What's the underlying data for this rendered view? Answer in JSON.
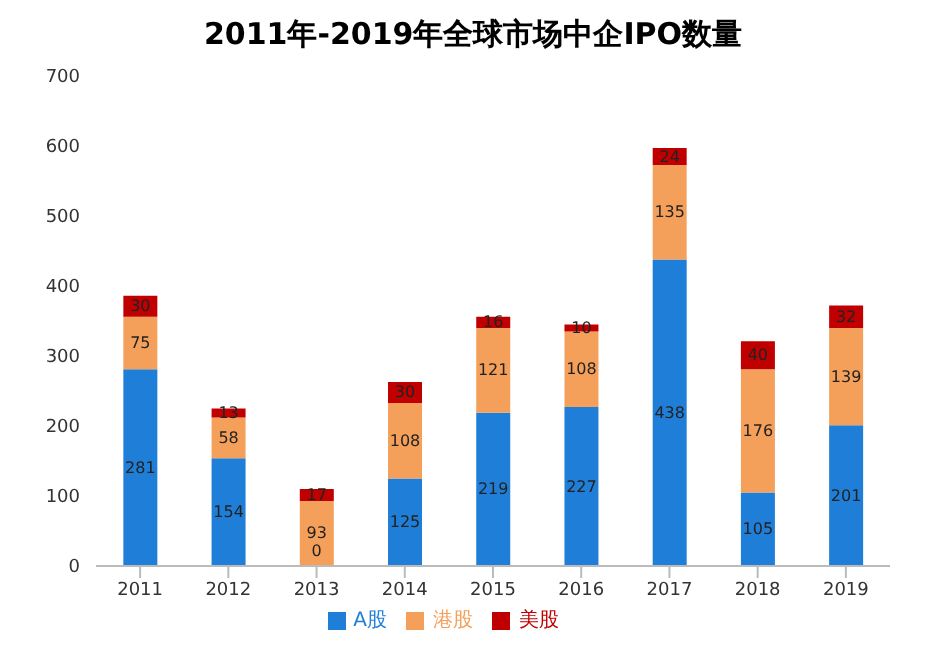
{
  "chart_data": {
    "type": "bar",
    "title": "2011年-2019年全球市场中企IPO数量",
    "categories": [
      "2011",
      "2012",
      "2013",
      "2014",
      "2015",
      "2016",
      "2017",
      "2018",
      "2019"
    ],
    "stacked": true,
    "series": [
      {
        "name": "A股",
        "color": "#1f7fd8",
        "values": [
          281,
          154,
          0,
          125,
          219,
          227,
          438,
          105,
          201
        ],
        "value_labels": [
          "281",
          "154",
          "0",
          "125",
          "219",
          "227",
          "438",
          "105",
          "201"
        ]
      },
      {
        "name": "港股",
        "color": "#f5a05a",
        "values": [
          75,
          58,
          93,
          108,
          121,
          108,
          135,
          176,
          139
        ],
        "value_labels": [
          "75",
          "58",
          "93",
          "108",
          "121",
          "108",
          "135",
          "176",
          "139"
        ]
      },
      {
        "name": "美股",
        "color": "#c00000",
        "values": [
          30,
          13,
          17,
          30,
          16,
          10,
          24,
          40,
          32
        ],
        "value_labels": [
          "30",
          "13",
          "17",
          "30",
          "16",
          "10",
          "24",
          "40",
          "32"
        ]
      }
    ],
    "ylim": [
      0,
      700
    ],
    "yticks": [
      0,
      100,
      200,
      300,
      400,
      500,
      600,
      700
    ],
    "legend": "bottom"
  }
}
